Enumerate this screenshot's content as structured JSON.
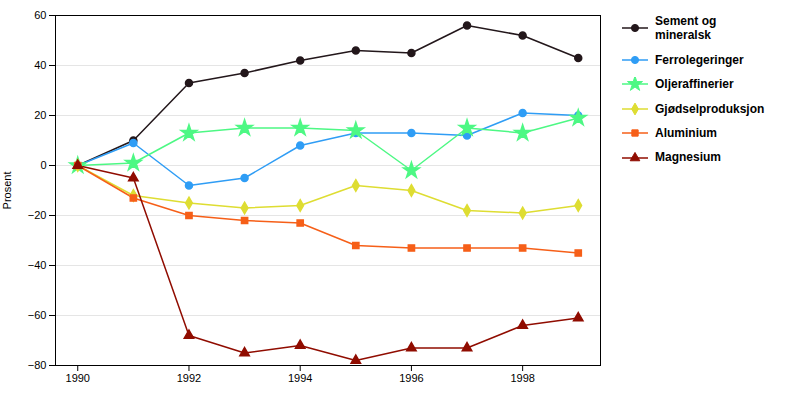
{
  "chart_data": {
    "type": "line",
    "x": [
      1990,
      1991,
      1992,
      1993,
      1994,
      1995,
      1996,
      1997,
      1998,
      1999
    ],
    "series": [
      {
        "name": "Sement og\nmineralsk",
        "marker": "circle",
        "values": [
          0,
          10,
          33,
          37,
          42,
          46,
          45,
          56,
          52,
          43
        ]
      },
      {
        "name": "Ferrolegeringer",
        "marker": "circle",
        "values": [
          0,
          9,
          -8,
          -5,
          8,
          13,
          13,
          12,
          21,
          20
        ]
      },
      {
        "name": "Oljeraffinerier",
        "marker": "star",
        "values": [
          0,
          1,
          13,
          15,
          15,
          14,
          -2,
          15,
          13,
          19
        ]
      },
      {
        "name": "Gjødselproduksjon",
        "marker": "diamond",
        "values": [
          0,
          -12,
          -15,
          -17,
          -16,
          -8,
          -10,
          -18,
          -19,
          -16
        ]
      },
      {
        "name": "Aluminium",
        "marker": "square",
        "values": [
          0,
          -13,
          -20,
          -22,
          -23,
          -32,
          -33,
          -33,
          -33,
          -35
        ]
      },
      {
        "name": "Magnesium",
        "marker": "triangle",
        "values": [
          0,
          -5,
          -68,
          -75,
          -72,
          -78,
          -73,
          -73,
          -64,
          -61
        ]
      }
    ],
    "ylabel": "Prosent",
    "xlim": [
      1989.6,
      1999.4
    ],
    "ylim": [
      -80,
      60
    ],
    "xticks": [
      1990,
      1992,
      1994,
      1996,
      1998
    ],
    "yticks": [
      -80,
      -60,
      -40,
      -20,
      0,
      20,
      40,
      60
    ],
    "grid": "y",
    "legend": "right"
  }
}
